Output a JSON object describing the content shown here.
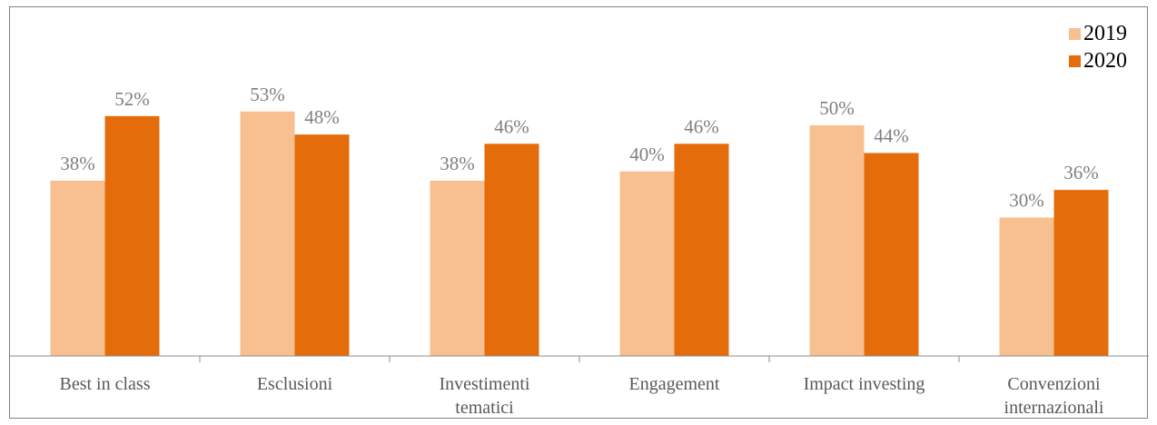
{
  "chart_data": {
    "type": "bar",
    "title": "",
    "xlabel": "",
    "ylabel": "",
    "ylim": [
      0,
      60
    ],
    "grid": false,
    "legend_position": "top-right",
    "categories": [
      [
        "Best in class"
      ],
      [
        "Esclusioni"
      ],
      [
        "Investimenti",
        "tematici"
      ],
      [
        "Engagement"
      ],
      [
        "Impact investing"
      ],
      [
        "Convenzioni",
        "internazionali"
      ]
    ],
    "series": [
      {
        "name": "2019",
        "color": "#f8c090",
        "values": [
          38,
          53,
          38,
          40,
          50,
          30
        ],
        "labels": [
          "38%",
          "53%",
          "38%",
          "40%",
          "50%",
          "30%"
        ]
      },
      {
        "name": "2020",
        "color": "#e46c0a",
        "values": [
          52,
          48,
          46,
          46,
          44,
          36
        ],
        "labels": [
          "52%",
          "48%",
          "46%",
          "46%",
          "44%",
          "36%"
        ]
      }
    ]
  }
}
